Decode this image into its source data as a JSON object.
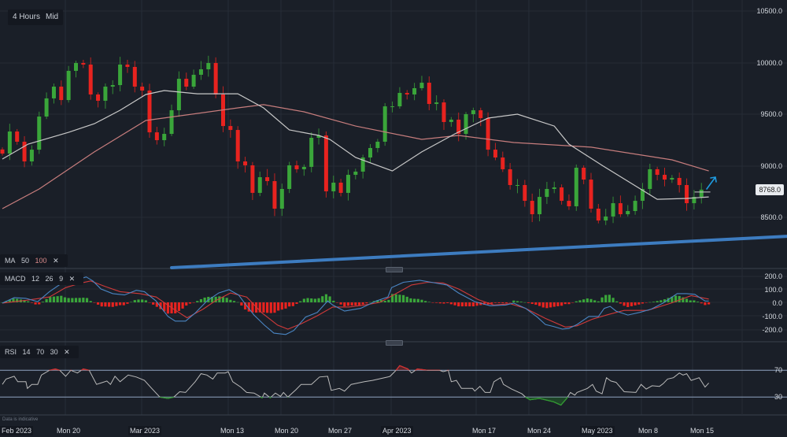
{
  "toolbar": {
    "interval": "4 Hours",
    "price_type": "Mid"
  },
  "indicators": {
    "ma": {
      "label": "MA",
      "p1": "50",
      "p2": "100",
      "close": "✕"
    },
    "macd": {
      "label": "MACD",
      "p1": "12",
      "p2": "26",
      "p3": "9",
      "close": "✕"
    },
    "rsi": {
      "label": "RSI",
      "p1": "14",
      "p2": "70",
      "p3": "30",
      "close": "✕"
    }
  },
  "price_axis": [
    "10500.0",
    "10000.0",
    "9500.0",
    "9000.0",
    "8500.0"
  ],
  "macd_axis": [
    "200.0",
    "100.0",
    "0.0",
    "-100.0",
    "-200.0"
  ],
  "rsi_axis": [
    "70",
    "30"
  ],
  "current_price": "8768.0",
  "disclaimer": "Data is indicative",
  "dates": [
    {
      "label": "Feb 2023",
      "month": true
    },
    {
      "label": "Mon 20",
      "month": false
    },
    {
      "label": "Mar 2023",
      "month": true
    },
    {
      "label": "Mon 13",
      "month": false
    },
    {
      "label": "Mon 20",
      "month": false
    },
    {
      "label": "Mon 27",
      "month": false
    },
    {
      "label": "Apr 2023",
      "month": true
    },
    {
      "label": "Mon 17",
      "month": false
    },
    {
      "label": "Mon 24",
      "month": false
    },
    {
      "label": "May 2023",
      "month": true
    },
    {
      "label": "Mon 8",
      "month": false
    },
    {
      "label": "Mon 15",
      "month": false
    }
  ],
  "colors": {
    "background": "#1a1f28",
    "up": "#3aa63a",
    "down": "#e8231f",
    "ma50": "#c8c8c8",
    "ma100": "#c77d7d",
    "macd": "#4a86c4",
    "signal": "#d03a3a",
    "rsi": "#bbbbbb",
    "levels": "#8fa3c0",
    "trendline": "#3d7cc0",
    "arrow": "#1e9be0"
  },
  "chart_data": {
    "type": "candlestick",
    "x_unit": "bar index (4-hour bars)",
    "ylim": [
      8000,
      10600
    ],
    "closes": [
      9118,
      9332,
      9233,
      9042,
      9156,
      9477,
      9653,
      9767,
      9637,
      9920,
      9996,
      9981,
      9691,
      9630,
      9767,
      9782,
      9981,
      9958,
      9767,
      9729,
      9324,
      9248,
      9309,
      9538,
      9843,
      9767,
      9882,
      9935,
      9996,
      9691,
      9385,
      9347,
      9042,
      9004,
      8737,
      8889,
      8851,
      8584,
      8775,
      9004,
      8966,
      8989,
      9271,
      9294,
      8752,
      8836,
      8737,
      8912,
      8943,
      9080,
      9172,
      9233,
      9576,
      9576,
      9706,
      9691,
      9752,
      9805,
      9599,
      9614,
      9424,
      9447,
      9309,
      9500,
      9538,
      9462,
      9156,
      9080,
      8966,
      8813,
      8813,
      8660,
      8530,
      8698,
      8775,
      8790,
      8660,
      8607,
      8981,
      8866,
      8584,
      8469,
      8508,
      8637,
      8530,
      8561,
      8660,
      8775,
      8966,
      8912,
      8866,
      8882,
      8813,
      8637,
      8698,
      8768
    ],
    "ma50": [
      [
        0,
        9065
      ],
      [
        3.5,
        9210
      ],
      [
        9,
        9324
      ],
      [
        12.5,
        9408
      ],
      [
        16,
        9538
      ],
      [
        19.5,
        9691
      ],
      [
        22,
        9729
      ],
      [
        26.5,
        9698
      ],
      [
        32,
        9698
      ],
      [
        35.5,
        9561
      ],
      [
        39,
        9347
      ],
      [
        43,
        9294
      ],
      [
        44.5,
        9256
      ],
      [
        48,
        9080
      ],
      [
        53,
        8950
      ],
      [
        57,
        9134
      ],
      [
        61.5,
        9309
      ],
      [
        66,
        9462
      ],
      [
        70,
        9500
      ],
      [
        75,
        9385
      ],
      [
        77,
        9210
      ],
      [
        81.5,
        9004
      ],
      [
        85.5,
        8828
      ],
      [
        89,
        8675
      ],
      [
        93,
        8683
      ],
      [
        96,
        8698
      ]
    ],
    "ma100": [
      [
        0,
        8584
      ],
      [
        5,
        8775
      ],
      [
        12.5,
        9134
      ],
      [
        19.5,
        9439
      ],
      [
        32,
        9561
      ],
      [
        35.5,
        9592
      ],
      [
        41,
        9523
      ],
      [
        48,
        9385
      ],
      [
        57,
        9256
      ],
      [
        62,
        9294
      ],
      [
        69.5,
        9225
      ],
      [
        80,
        9180
      ],
      [
        91,
        9057
      ],
      [
        96,
        8950
      ]
    ],
    "trendline": [
      [
        23,
        8011
      ],
      [
        107,
        8317
      ]
    ],
    "macd": {
      "ylim": [
        -260,
        230
      ],
      "macd": [
        [
          0,
          -5
        ],
        [
          1.6,
          35
        ],
        [
          3.2,
          30
        ],
        [
          4.8,
          5
        ],
        [
          6.4,
          80
        ],
        [
          8,
          140
        ],
        [
          9.1,
          150
        ],
        [
          10.2,
          170
        ],
        [
          11.4,
          190
        ],
        [
          12.3,
          160
        ],
        [
          13.4,
          100
        ],
        [
          15,
          65
        ],
        [
          16.6,
          55
        ],
        [
          18.2,
          90
        ],
        [
          19.3,
          80
        ],
        [
          20.9,
          10
        ],
        [
          22.5,
          -105
        ],
        [
          23.5,
          -140
        ],
        [
          24.9,
          -140
        ],
        [
          26.2,
          -80
        ],
        [
          27.8,
          10
        ],
        [
          29.4,
          70
        ],
        [
          30.8,
          95
        ],
        [
          32.1,
          55
        ],
        [
          33.2,
          -25
        ],
        [
          34.2,
          -95
        ],
        [
          35.6,
          -170
        ],
        [
          36.9,
          -230
        ],
        [
          38.5,
          -240
        ],
        [
          39.6,
          -210
        ],
        [
          41.2,
          -110
        ],
        [
          42.8,
          -75
        ],
        [
          44.2,
          10
        ],
        [
          44.9,
          -20
        ],
        [
          46.5,
          -65
        ],
        [
          48.7,
          -45
        ],
        [
          50.8,
          10
        ],
        [
          52.4,
          40
        ],
        [
          52.9,
          110
        ],
        [
          54.5,
          150
        ],
        [
          56.7,
          165
        ],
        [
          58.3,
          150
        ],
        [
          60.4,
          130
        ],
        [
          62,
          70
        ],
        [
          64.2,
          5
        ],
        [
          66.3,
          -25
        ],
        [
          68.4,
          -20
        ],
        [
          69.5,
          -5
        ],
        [
          71.1,
          -45
        ],
        [
          72.7,
          -110
        ],
        [
          73.8,
          -165
        ],
        [
          74.9,
          -180
        ],
        [
          76.1,
          -200
        ],
        [
          77,
          -195
        ],
        [
          78.1,
          -165
        ],
        [
          79.7,
          -105
        ],
        [
          81,
          -105
        ],
        [
          81.8,
          -45
        ],
        [
          82.6,
          -30
        ],
        [
          83.4,
          -65
        ],
        [
          85,
          -95
        ],
        [
          86.6,
          -75
        ],
        [
          88.2,
          -50
        ],
        [
          89.8,
          -5
        ],
        [
          91.7,
          65
        ],
        [
          93,
          65
        ],
        [
          94.1,
          60
        ],
        [
          95.5,
          10
        ],
        [
          96,
          10
        ]
      ],
      "signal": [
        [
          0,
          -5
        ],
        [
          3.2,
          15
        ],
        [
          6.4,
          40
        ],
        [
          8.6,
          110
        ],
        [
          10.7,
          145
        ],
        [
          12,
          160
        ],
        [
          13.9,
          120
        ],
        [
          16,
          80
        ],
        [
          18.7,
          65
        ],
        [
          20.9,
          40
        ],
        [
          23,
          -40
        ],
        [
          25.1,
          -115
        ],
        [
          27.3,
          -50
        ],
        [
          28.9,
          10
        ],
        [
          31,
          70
        ],
        [
          33.2,
          40
        ],
        [
          35.3,
          -80
        ],
        [
          37.4,
          -170
        ],
        [
          38.8,
          -200
        ],
        [
          40.6,
          -160
        ],
        [
          42.8,
          -100
        ],
        [
          44.9,
          -35
        ],
        [
          47.1,
          -35
        ],
        [
          49.2,
          -20
        ],
        [
          51.3,
          0
        ],
        [
          53.5,
          65
        ],
        [
          55.6,
          130
        ],
        [
          57.8,
          150
        ],
        [
          59.9,
          145
        ],
        [
          62,
          100
        ],
        [
          64.7,
          20
        ],
        [
          66.8,
          -20
        ],
        [
          69,
          -10
        ],
        [
          71.1,
          -45
        ],
        [
          73.8,
          -120
        ],
        [
          76.5,
          -185
        ],
        [
          78.1,
          -175
        ],
        [
          80.2,
          -125
        ],
        [
          82.4,
          -90
        ],
        [
          84.5,
          -60
        ],
        [
          87.7,
          -60
        ],
        [
          90.9,
          -5
        ],
        [
          93.6,
          50
        ],
        [
          96,
          25
        ]
      ]
    },
    "rsi": {
      "ylim": [
        0,
        100
      ],
      "levels": [
        70,
        30
      ],
      "values": [
        [
          0,
          49
        ],
        [
          0.5,
          57
        ],
        [
          1.6,
          61
        ],
        [
          2.1,
          53
        ],
        [
          3.2,
          53
        ],
        [
          3.4,
          43
        ],
        [
          4,
          49
        ],
        [
          4.8,
          49
        ],
        [
          5.3,
          63
        ],
        [
          6.4,
          70
        ],
        [
          7.2,
          72
        ],
        [
          7.8,
          70
        ],
        [
          8.6,
          61
        ],
        [
          9.3,
          70
        ],
        [
          10.2,
          66
        ],
        [
          11,
          72
        ],
        [
          11.8,
          70
        ],
        [
          12.8,
          49
        ],
        [
          14.2,
          54
        ],
        [
          14.7,
          49
        ],
        [
          15.3,
          61
        ],
        [
          16,
          53
        ],
        [
          17.1,
          63
        ],
        [
          18.2,
          60
        ],
        [
          19.3,
          55
        ],
        [
          20.3,
          43
        ],
        [
          21.4,
          30
        ],
        [
          22.5,
          28
        ],
        [
          23.3,
          30
        ],
        [
          24.1,
          38
        ],
        [
          24.9,
          37
        ],
        [
          26.2,
          53
        ],
        [
          27,
          65
        ],
        [
          27.8,
          63
        ],
        [
          28.6,
          57
        ],
        [
          29.2,
          66
        ],
        [
          30.3,
          66
        ],
        [
          30.7,
          68
        ],
        [
          31.3,
          53
        ],
        [
          32.4,
          45
        ],
        [
          33.2,
          37
        ],
        [
          34.2,
          36
        ],
        [
          35.3,
          29
        ],
        [
          35.6,
          36
        ],
        [
          36.4,
          29
        ],
        [
          37.1,
          36
        ],
        [
          37.8,
          31
        ],
        [
          38.2,
          37
        ],
        [
          38.8,
          30
        ],
        [
          39.9,
          41
        ],
        [
          40.6,
          49
        ],
        [
          42,
          49
        ],
        [
          43.1,
          60
        ],
        [
          44.2,
          61
        ],
        [
          44.7,
          40
        ],
        [
          45.8,
          43
        ],
        [
          46.5,
          39
        ],
        [
          47.4,
          49
        ],
        [
          49.2,
          53
        ],
        [
          50.3,
          55
        ],
        [
          52.4,
          60
        ],
        [
          52.7,
          61
        ],
        [
          53.5,
          70
        ],
        [
          54,
          77
        ],
        [
          55.1,
          72
        ],
        [
          55.6,
          66
        ],
        [
          56.4,
          72
        ],
        [
          57.8,
          70
        ],
        [
          59.4,
          70
        ],
        [
          59.9,
          68
        ],
        [
          60.6,
          70
        ],
        [
          61,
          53
        ],
        [
          61.7,
          55
        ],
        [
          62.4,
          43
        ],
        [
          63.9,
          43
        ],
        [
          64.2,
          39
        ],
        [
          64.9,
          46
        ],
        [
          65.6,
          37
        ],
        [
          66.3,
          37
        ],
        [
          66.8,
          53
        ],
        [
          67.7,
          59
        ],
        [
          68.1,
          49
        ],
        [
          69.2,
          42
        ],
        [
          70.6,
          35
        ],
        [
          71.1,
          30
        ],
        [
          71.7,
          26
        ],
        [
          73,
          28
        ],
        [
          74.9,
          23
        ],
        [
          75.9,
          18
        ],
        [
          76.7,
          28
        ],
        [
          77.2,
          37
        ],
        [
          77.8,
          33
        ],
        [
          78.1,
          37
        ],
        [
          79.5,
          43
        ],
        [
          80.2,
          49
        ],
        [
          80.7,
          39
        ],
        [
          81.5,
          35
        ],
        [
          82.1,
          59
        ],
        [
          82.7,
          54
        ],
        [
          83.4,
          52
        ],
        [
          84.5,
          38
        ],
        [
          86.1,
          37
        ],
        [
          86.8,
          49
        ],
        [
          87.5,
          42
        ],
        [
          88.3,
          47
        ],
        [
          89.3,
          46
        ],
        [
          89.8,
          50
        ],
        [
          90.4,
          57
        ],
        [
          91.2,
          59
        ],
        [
          92,
          66
        ],
        [
          92.5,
          63
        ],
        [
          93,
          65
        ],
        [
          93.6,
          55
        ],
        [
          94.7,
          59
        ],
        [
          95.5,
          45
        ],
        [
          96,
          51
        ]
      ]
    }
  }
}
